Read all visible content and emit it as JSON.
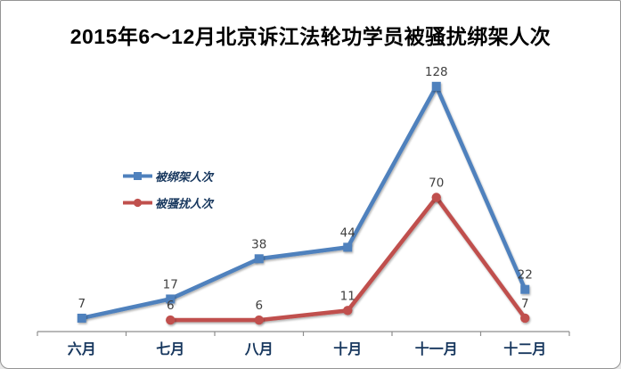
{
  "chart_data": {
    "type": "line",
    "title": "2015年6～12月北京诉江法轮功学员被骚扰绑架人次",
    "categories": [
      "六月",
      "七月",
      "八月",
      "十月",
      "十一月",
      "十二月"
    ],
    "series": [
      {
        "name": "被绑架人次",
        "color": "#4F81BD",
        "marker": "square",
        "values": [
          7,
          17,
          38,
          44,
          128,
          22
        ]
      },
      {
        "name": "被骚扰人次",
        "color": "#C0504D",
        "marker": "circle",
        "values": [
          null,
          6,
          6,
          11,
          70,
          7
        ]
      }
    ],
    "xlabel": "",
    "ylabel": "",
    "ylim": [
      0,
      140
    ],
    "grid": false,
    "y_axis_visible": false,
    "legend_position": "left-middle",
    "data_labels": true,
    "text_color": "#17375E",
    "data_label_color": "#3F3F3F",
    "axis_line_color": "#8E8E8E",
    "border_color": "#949494",
    "background_color": "#FFFFFF"
  }
}
